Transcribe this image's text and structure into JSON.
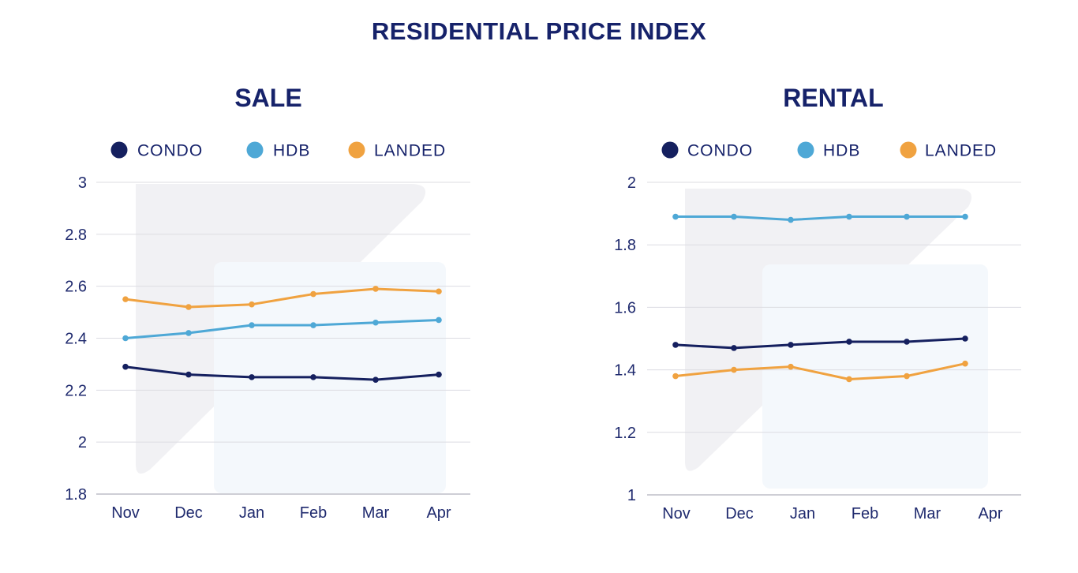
{
  "page_title": "RESIDENTIAL PRICE INDEX",
  "colors": {
    "condo": "#15205f",
    "hdb": "#4ea8d6",
    "landed": "#f0a240",
    "grid": "#dcdce2",
    "text": "#16226a"
  },
  "chart_data": [
    {
      "type": "line",
      "title": "SALE",
      "categories": [
        "Nov",
        "Dec",
        "Jan",
        "Feb",
        "Mar",
        "Apr"
      ],
      "ylim": [
        1.8,
        3
      ],
      "yticks": [
        "1.8",
        "2",
        "2.2",
        "2.4",
        "2.6",
        "2.8",
        "3"
      ],
      "grid": true,
      "legend_position": "top",
      "series": [
        {
          "name": "CONDO",
          "color_key": "condo",
          "values": [
            2.29,
            2.26,
            2.25,
            2.25,
            2.24,
            2.26
          ]
        },
        {
          "name": "HDB",
          "color_key": "hdb",
          "values": [
            2.4,
            2.42,
            2.45,
            2.45,
            2.46,
            2.47
          ]
        },
        {
          "name": "LANDED",
          "color_key": "landed",
          "values": [
            2.55,
            2.52,
            2.53,
            2.57,
            2.59,
            2.58
          ]
        }
      ]
    },
    {
      "type": "line",
      "title": "RENTAL",
      "categories": [
        "Nov",
        "Dec",
        "Jan",
        "Feb",
        "Mar",
        "Apr"
      ],
      "ylim": [
        1,
        2
      ],
      "yticks": [
        "1",
        "1.2",
        "1.4",
        "1.6",
        "1.8",
        "2"
      ],
      "grid": true,
      "legend_position": "top",
      "series": [
        {
          "name": "CONDO",
          "color_key": "condo",
          "values": [
            1.48,
            1.47,
            1.48,
            1.49,
            1.49,
            1.5
          ]
        },
        {
          "name": "HDB",
          "color_key": "hdb",
          "values": [
            1.89,
            1.89,
            1.88,
            1.89,
            1.89,
            1.89
          ]
        },
        {
          "name": "LANDED",
          "color_key": "landed",
          "values": [
            1.38,
            1.4,
            1.41,
            1.37,
            1.38,
            1.42
          ]
        }
      ]
    }
  ]
}
